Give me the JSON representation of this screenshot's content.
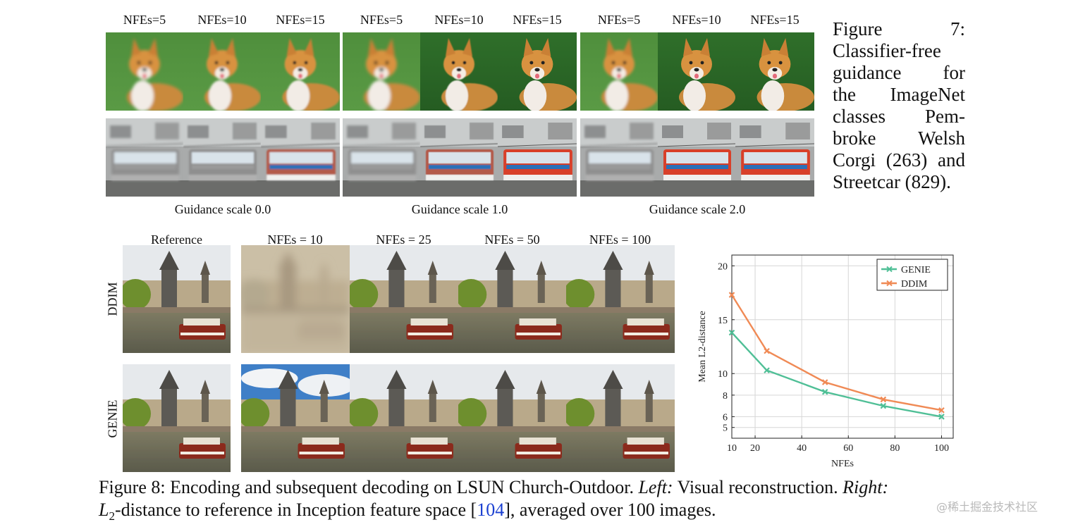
{
  "figure7": {
    "nfe_labels": [
      "NFEs=5",
      "NFEs=10",
      "NFEs=15",
      "NFEs=5",
      "NFEs=10",
      "NFEs=15",
      "NFEs=5",
      "NFEs=10",
      "NFEs=15"
    ],
    "guidance_labels": [
      "Guidance scale 0.0",
      "Guidance scale 1.0",
      "Guidance scale 2.0"
    ],
    "caption_lines": [
      "Figure 7:",
      "Classifier-free",
      "guidance for",
      "the ImageNet",
      "classes Pem-",
      "broke Welsh",
      "Corgi (263) and",
      "Streetcar (829)."
    ]
  },
  "figure8": {
    "col_labels": [
      "Reference",
      "NFEs = 10",
      "NFEs = 25",
      "NFEs = 50",
      "NFEs = 100"
    ],
    "row_labels": [
      "DDIM",
      "GENIE"
    ],
    "caption": {
      "label": "Figure 8:",
      "text1": " Encoding and subsequent decoding on LSUN Church-Outdoor. ",
      "left": "Left:",
      "text2": " Visual reconstruction. ",
      "right": "Right:",
      "line2_pre": "-distance to reference in Inception feature space [",
      "cite": "104",
      "line2_post": "], averaged over 100 images.",
      "l2_symbol": "L",
      "l2_sub": "2"
    }
  },
  "chart_data": {
    "type": "line",
    "xlabel": "NFEs",
    "ylabel": "Mean L2-distance",
    "xlim": [
      10,
      105
    ],
    "ylim": [
      4.0,
      21.0
    ],
    "x_ticks": [
      10,
      20,
      40,
      60,
      80,
      100
    ],
    "y_ticks": [
      5,
      6,
      8,
      10,
      15,
      20
    ],
    "grid": true,
    "legend_position": "top-right",
    "series": [
      {
        "name": "GENIE",
        "color": "#4fbf96",
        "marker": "x",
        "x": [
          10,
          25,
          50,
          75,
          100
        ],
        "y": [
          13.8,
          10.3,
          8.3,
          7.0,
          6.0
        ]
      },
      {
        "name": "DDIM",
        "color": "#f08a55",
        "marker": "x",
        "x": [
          10,
          25,
          50,
          75,
          100
        ],
        "y": [
          17.3,
          12.1,
          9.2,
          7.6,
          6.6
        ]
      }
    ]
  },
  "watermark": "@稀土掘金技术社区",
  "colors": {
    "genie": "#4fbf96",
    "ddim": "#f08a55",
    "cite": "#1a3fd1"
  }
}
